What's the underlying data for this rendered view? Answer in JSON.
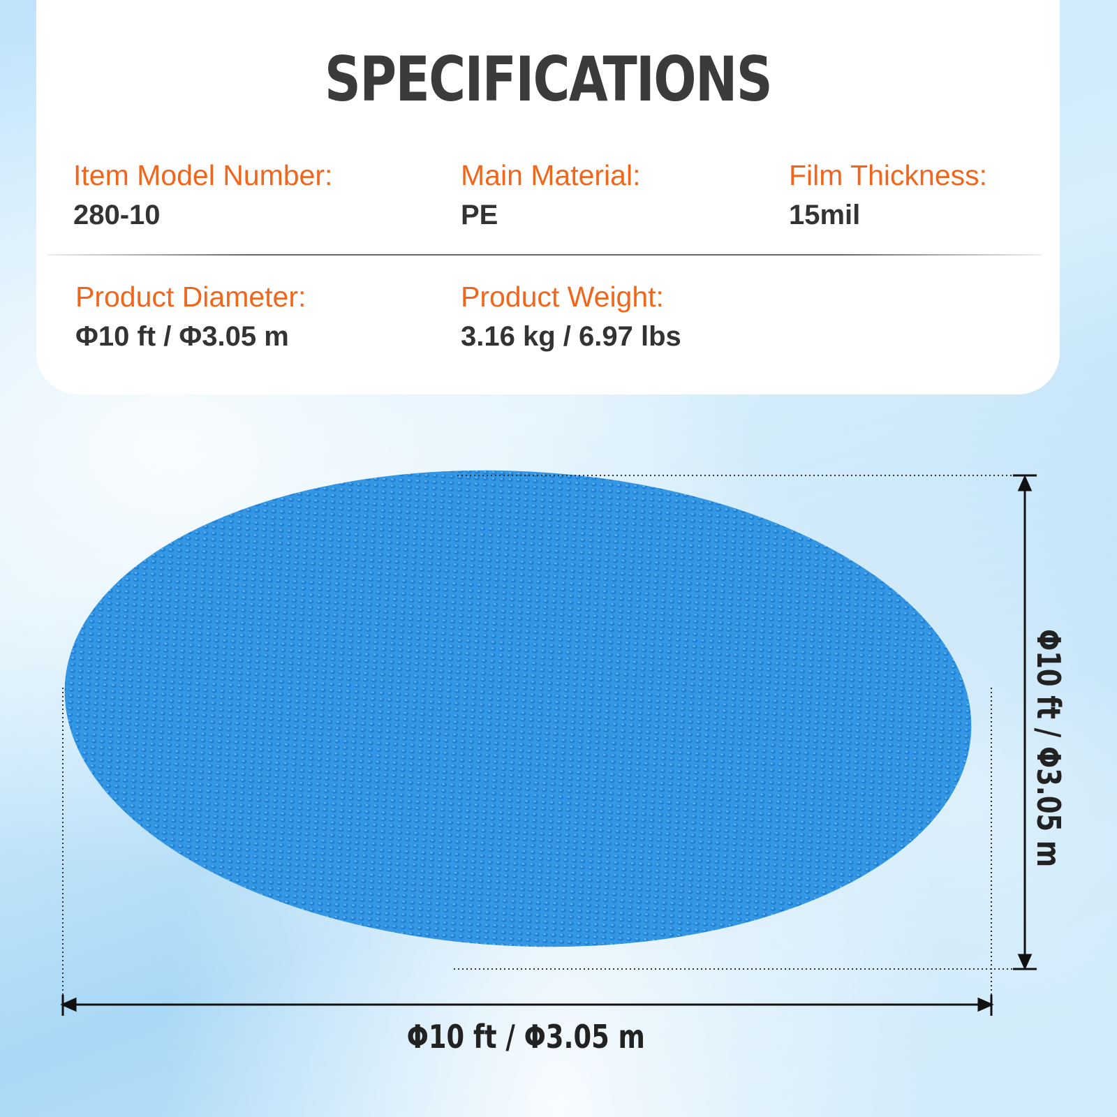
{
  "title": "SPECIFICATIONS",
  "specs": [
    {
      "label": "Item Model Number:",
      "value": "280-10"
    },
    {
      "label": "Main Material:",
      "value": "PE"
    },
    {
      "label": "Film Thickness:",
      "value": "15mil"
    },
    {
      "label": "Product Diameter:",
      "value": "Φ10 ft / Φ3.05 m"
    },
    {
      "label": "Product Weight:",
      "value": "3.16 kg / 6.97 lbs"
    }
  ],
  "dimensions": {
    "width": "Φ10 ft / Φ3.05 m",
    "height": "Φ10 ft / Φ3.05 m"
  },
  "colors": {
    "label": "#f0661c",
    "cover": "#2f8fe0",
    "title": "#3b3b3b"
  }
}
